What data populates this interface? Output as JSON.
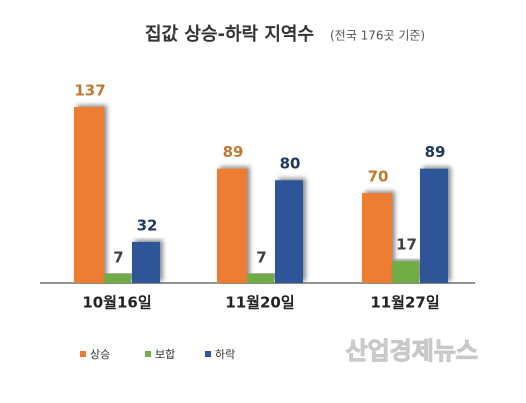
{
  "chart_data": {
    "type": "bar",
    "title": "집값 상승-하락 지역수",
    "subtitle": "(전국 176곳 기준)",
    "categories": [
      "10월16일",
      "11월20일",
      "11월27일"
    ],
    "series": [
      {
        "name": "상승",
        "color": "#ed7d31",
        "values": [
          137,
          89,
          70
        ]
      },
      {
        "name": "보합",
        "color": "#70ad47",
        "values": [
          7,
          7,
          17
        ]
      },
      {
        "name": "하락",
        "color": "#2f5597",
        "values": [
          32,
          80,
          89
        ]
      }
    ],
    "watermark": "산업경제뉴스"
  }
}
